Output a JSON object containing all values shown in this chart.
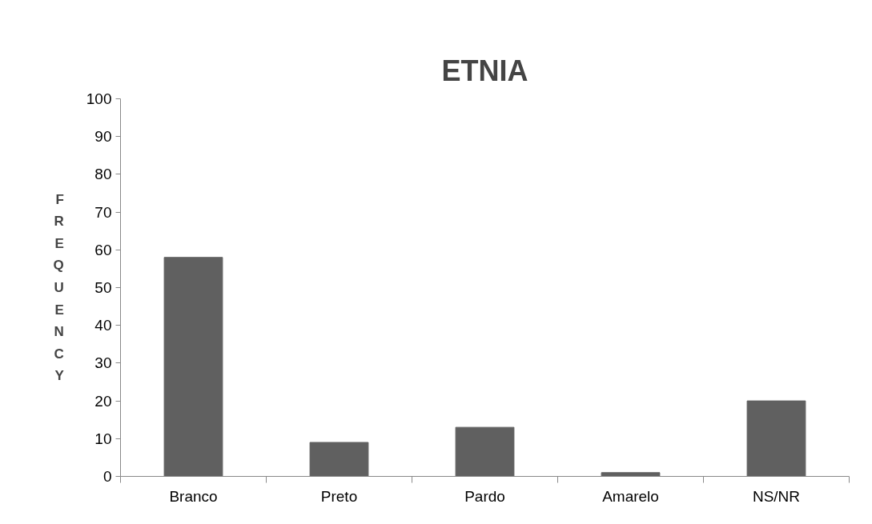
{
  "chart_data": {
    "type": "bar",
    "title": "ETNIA",
    "ylabel": "FREQUENCY",
    "categories": [
      "Branco",
      "Preto",
      "Pardo",
      "Amarelo",
      "NS/NR"
    ],
    "values": [
      58,
      9,
      13,
      1,
      20
    ],
    "color": "#606060",
    "ylim": [
      0,
      100
    ],
    "yticks": [
      0,
      10,
      20,
      30,
      40,
      50,
      60,
      70,
      80,
      90,
      100
    ]
  }
}
